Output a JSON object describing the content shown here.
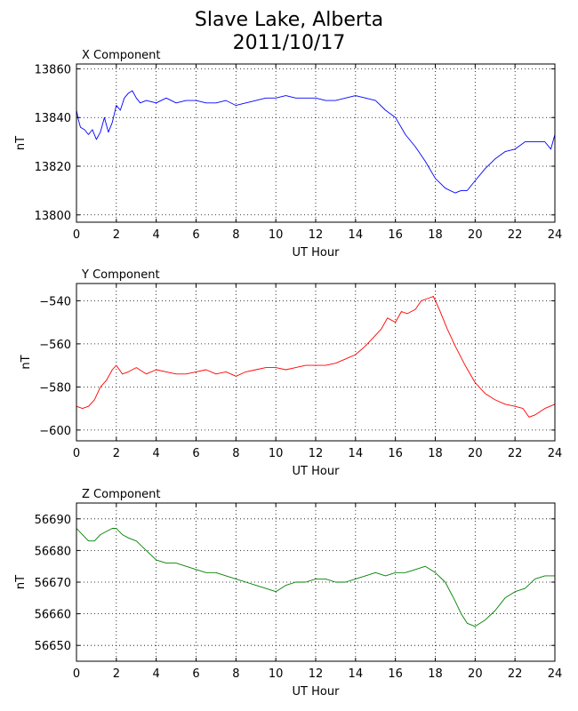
{
  "title": {
    "line1": "Slave Lake, Alberta",
    "line2": "2011/10/17"
  },
  "chart_data": [
    {
      "type": "line",
      "title": "X Component",
      "xlabel": "UT Hour",
      "ylabel": "nT",
      "xlim": [
        0,
        24
      ],
      "ylim": [
        13797,
        13862
      ],
      "xticks": [
        0,
        2,
        4,
        6,
        8,
        10,
        12,
        14,
        16,
        18,
        20,
        22,
        24
      ],
      "yticks": [
        13800,
        13820,
        13840,
        13860
      ],
      "grid": true,
      "color": "#0000ff",
      "series": [
        {
          "x": [
            0,
            0.1,
            0.2,
            0.4,
            0.6,
            0.8,
            1.0,
            1.2,
            1.4,
            1.6,
            1.8,
            2.0,
            2.2,
            2.4,
            2.6,
            2.8,
            3.0,
            3.2,
            3.5,
            4.0,
            4.5,
            5.0,
            5.5,
            6.0,
            6.5,
            7.0,
            7.5,
            8.0,
            8.5,
            9.0,
            9.5,
            10.0,
            10.5,
            11.0,
            11.5,
            12.0,
            12.5,
            13.0,
            13.5,
            14.0,
            14.5,
            15.0,
            15.5,
            16.0,
            16.5,
            17.0,
            17.5,
            18.0,
            18.5,
            19.0,
            19.3,
            19.6,
            20.0,
            20.5,
            21.0,
            21.5,
            22.0,
            22.5,
            23.0,
            23.5,
            23.8,
            24.0
          ],
          "y": [
            13843,
            13839,
            13836,
            13835,
            13833,
            13835,
            13831,
            13834,
            13840,
            13834,
            13838,
            13845,
            13843,
            13848,
            13850,
            13851,
            13848,
            13846,
            13847,
            13846,
            13848,
            13846,
            13847,
            13847,
            13846,
            13846,
            13847,
            13845,
            13846,
            13847,
            13848,
            13848,
            13849,
            13848,
            13848,
            13848,
            13847,
            13847,
            13848,
            13849,
            13848,
            13847,
            13843,
            13840,
            13833,
            13828,
            13822,
            13815,
            13811,
            13809,
            13810,
            13810,
            13814,
            13819,
            13823,
            13826,
            13827,
            13830,
            13830,
            13830,
            13827,
            13833
          ]
        }
      ]
    },
    {
      "type": "line",
      "title": "Y Component",
      "xlabel": "UT Hour",
      "ylabel": "nT",
      "xlim": [
        0,
        24
      ],
      "ylim": [
        -605,
        -532
      ],
      "xticks": [
        0,
        2,
        4,
        6,
        8,
        10,
        12,
        14,
        16,
        18,
        20,
        22,
        24
      ],
      "yticks": [
        -600,
        -580,
        -560,
        -540
      ],
      "grid": true,
      "color": "#ff0000",
      "series": [
        {
          "x": [
            0,
            0.3,
            0.6,
            0.9,
            1.2,
            1.5,
            1.8,
            2.0,
            2.3,
            2.6,
            3.0,
            3.5,
            4.0,
            4.5,
            5.0,
            5.5,
            6.0,
            6.5,
            7.0,
            7.5,
            8.0,
            8.5,
            9.0,
            9.5,
            10.0,
            10.5,
            11.0,
            11.5,
            12.0,
            12.5,
            13.0,
            13.5,
            14.0,
            14.5,
            15.0,
            15.3,
            15.6,
            16.0,
            16.3,
            16.6,
            17.0,
            17.3,
            17.6,
            17.9,
            18.2,
            18.6,
            19.0,
            19.5,
            20.0,
            20.5,
            21.0,
            21.5,
            22.0,
            22.4,
            22.7,
            23.0,
            23.5,
            24.0
          ],
          "y": [
            -589,
            -590,
            -589,
            -586,
            -580,
            -577,
            -572,
            -570,
            -574,
            -573,
            -571,
            -574,
            -572,
            -573,
            -574,
            -574,
            -573,
            -572,
            -574,
            -573,
            -575,
            -573,
            -572,
            -571,
            -571,
            -572,
            -571,
            -570,
            -570,
            -570,
            -569,
            -567,
            -565,
            -561,
            -556,
            -553,
            -548,
            -550,
            -545,
            -546,
            -544,
            -540,
            -539,
            -538,
            -544,
            -553,
            -561,
            -570,
            -578,
            -583,
            -586,
            -588,
            -589,
            -590,
            -594,
            -593,
            -590,
            -588
          ]
        }
      ]
    },
    {
      "type": "line",
      "title": "Z Component",
      "xlabel": "UT Hour",
      "ylabel": "nT",
      "xlim": [
        0,
        24
      ],
      "ylim": [
        56645,
        56695
      ],
      "xticks": [
        0,
        2,
        4,
        6,
        8,
        10,
        12,
        14,
        16,
        18,
        20,
        22,
        24
      ],
      "yticks": [
        56650,
        56660,
        56670,
        56680,
        56690
      ],
      "grid": true,
      "color": "#008000",
      "series": [
        {
          "x": [
            0,
            0.3,
            0.6,
            0.9,
            1.2,
            1.5,
            1.8,
            2.0,
            2.3,
            2.6,
            3.0,
            3.5,
            4.0,
            4.5,
            5.0,
            5.5,
            6.0,
            6.5,
            7.0,
            7.5,
            8.0,
            8.5,
            9.0,
            9.5,
            10.0,
            10.5,
            11.0,
            11.5,
            12.0,
            12.5,
            13.0,
            13.5,
            14.0,
            14.5,
            15.0,
            15.5,
            16.0,
            16.5,
            17.0,
            17.5,
            18.0,
            18.5,
            19.0,
            19.3,
            19.6,
            20.0,
            20.5,
            21.0,
            21.5,
            22.0,
            22.5,
            23.0,
            23.5,
            24.0
          ],
          "y": [
            56687,
            56685,
            56683,
            56683,
            56685,
            56686,
            56687,
            56687,
            56685,
            56684,
            56683,
            56680,
            56677,
            56676,
            56676,
            56675,
            56674,
            56673,
            56673,
            56672,
            56671,
            56670,
            56669,
            56668,
            56667,
            56669,
            56670,
            56670,
            56671,
            56671,
            56670,
            56670,
            56671,
            56672,
            56673,
            56672,
            56673,
            56673,
            56674,
            56675,
            56673,
            56670,
            56664,
            56660,
            56657,
            56656,
            56658,
            56661,
            56665,
            56667,
            56668,
            56671,
            56672,
            56672
          ]
        }
      ]
    }
  ]
}
